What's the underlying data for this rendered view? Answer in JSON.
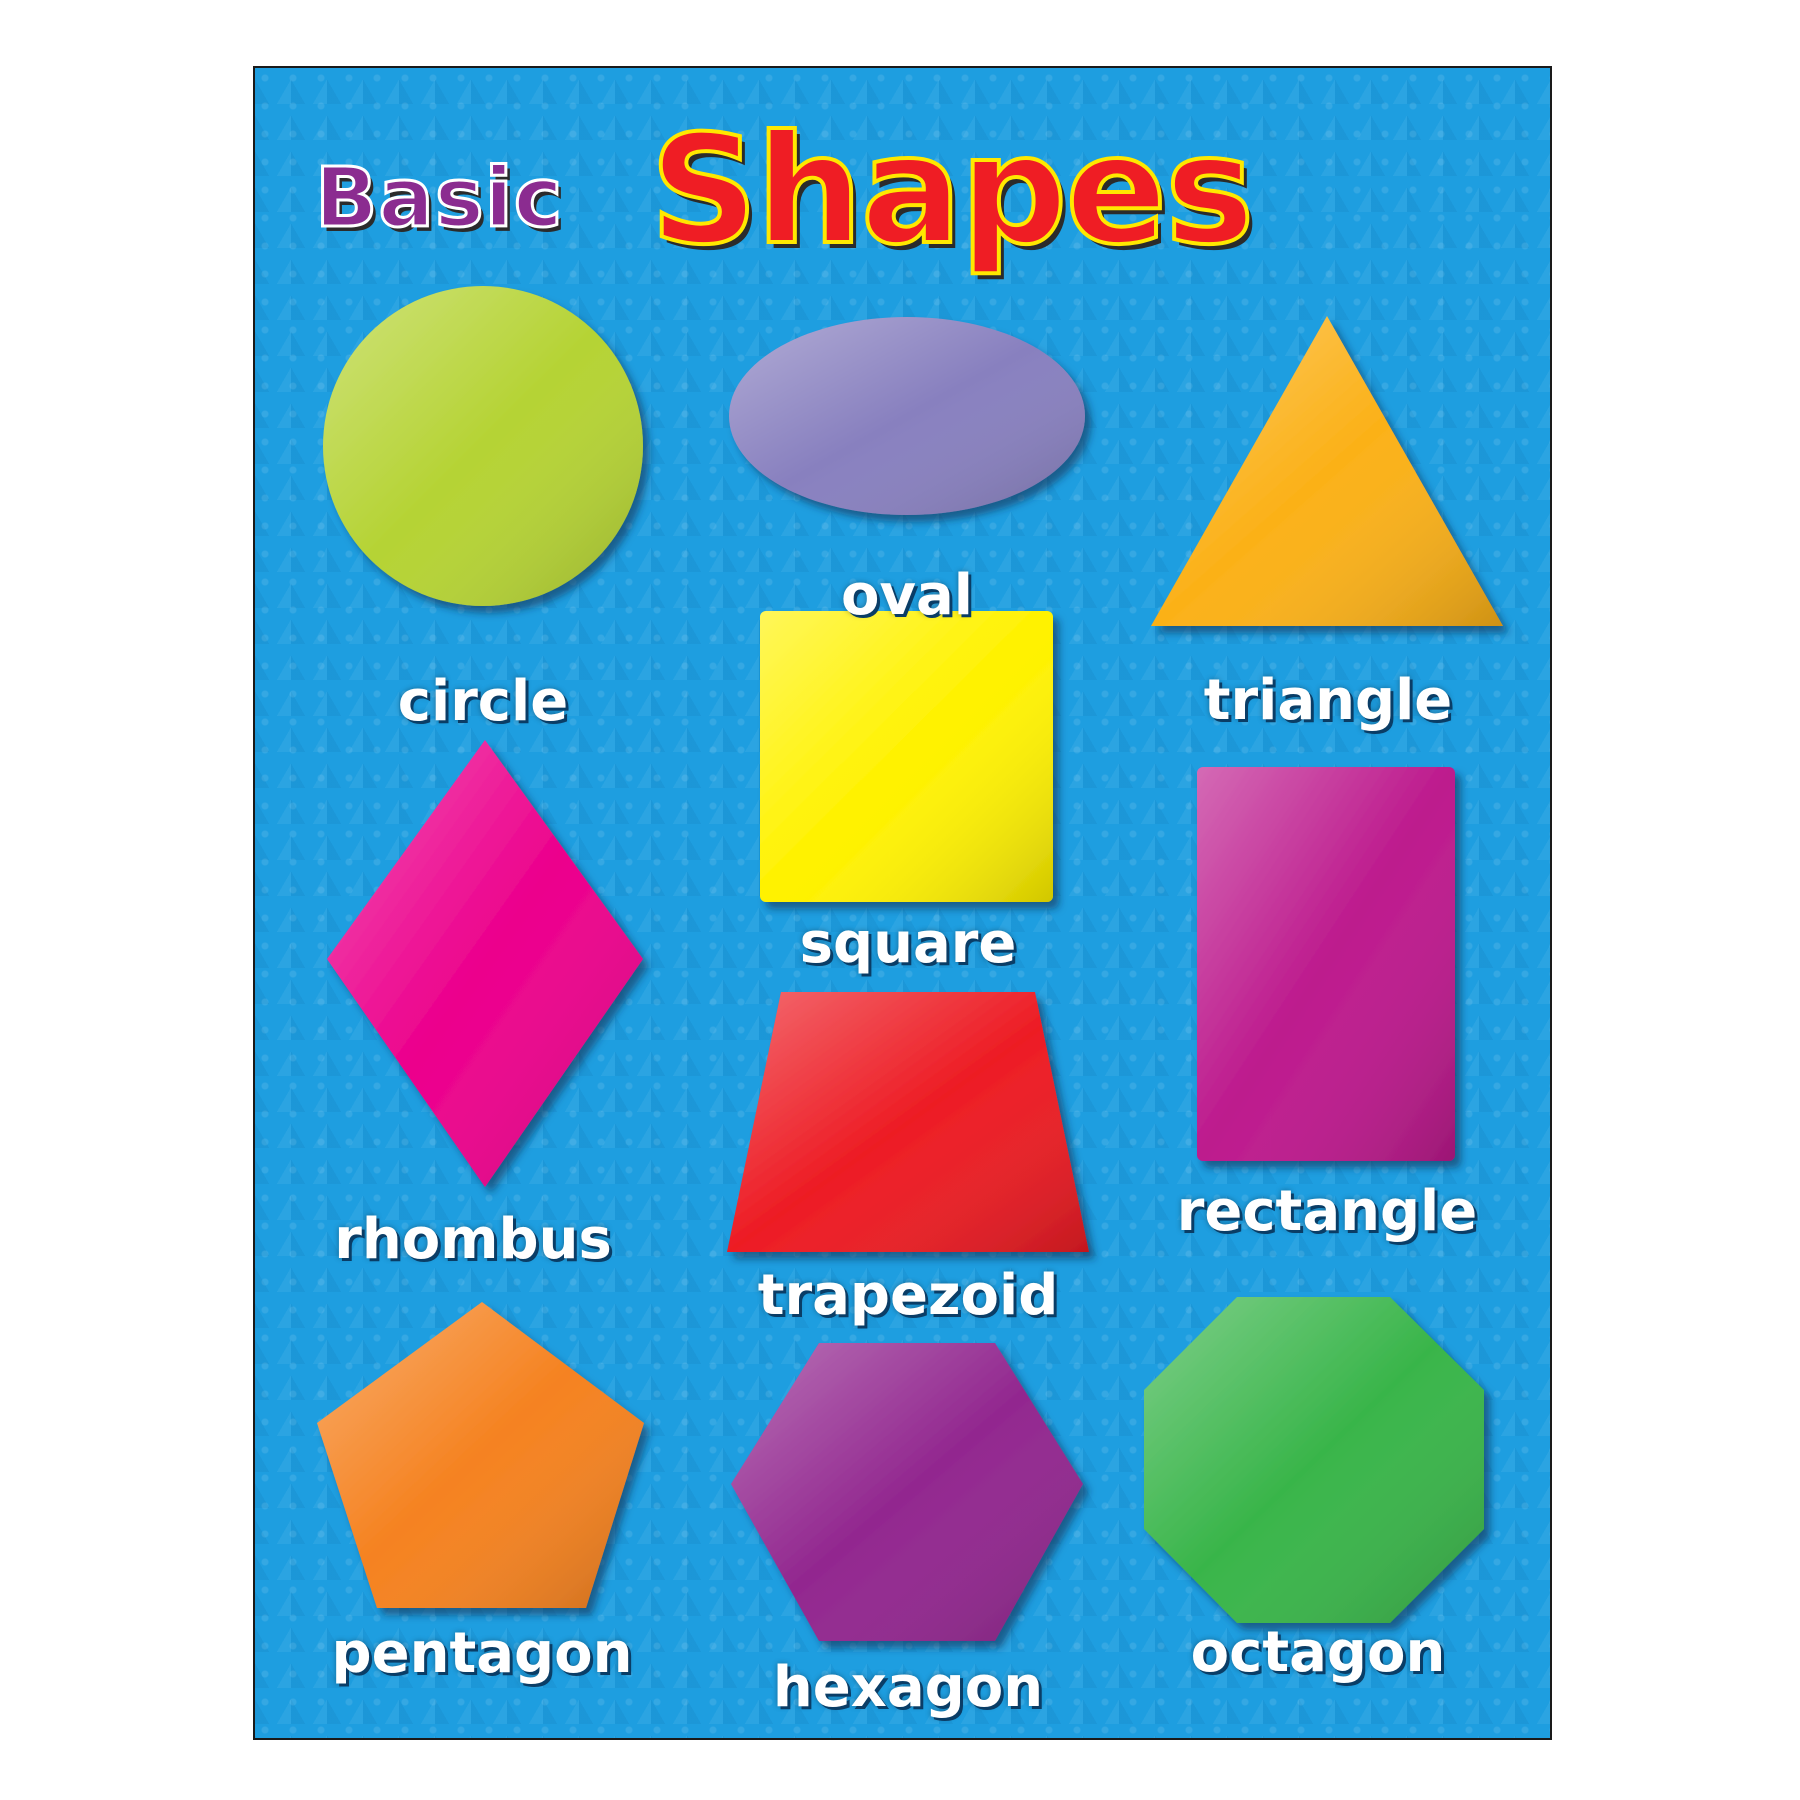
{
  "title": {
    "basic": "Basic",
    "shapes": "Shapes"
  },
  "shapes": [
    {
      "label": "circle",
      "color": "#b5d334"
    },
    {
      "label": "oval",
      "color": "#8880bf"
    },
    {
      "label": "triangle",
      "color": "#fbb118"
    },
    {
      "label": "square",
      "color": "#fff200"
    },
    {
      "label": "rhombus",
      "color": "#ec008c"
    },
    {
      "label": "rectangle",
      "color": "#bd1a8d"
    },
    {
      "label": "trapezoid",
      "color": "#ed1c24"
    },
    {
      "label": "pentagon",
      "color": "#f58220"
    },
    {
      "label": "hexagon",
      "color": "#92278f"
    },
    {
      "label": "octagon",
      "color": "#39b54a"
    }
  ],
  "colors": {
    "background": "#1e9ee0",
    "title_basic": "#8b2c90",
    "title_shapes": "#ef1d24",
    "title_outline": "#ffe800"
  }
}
